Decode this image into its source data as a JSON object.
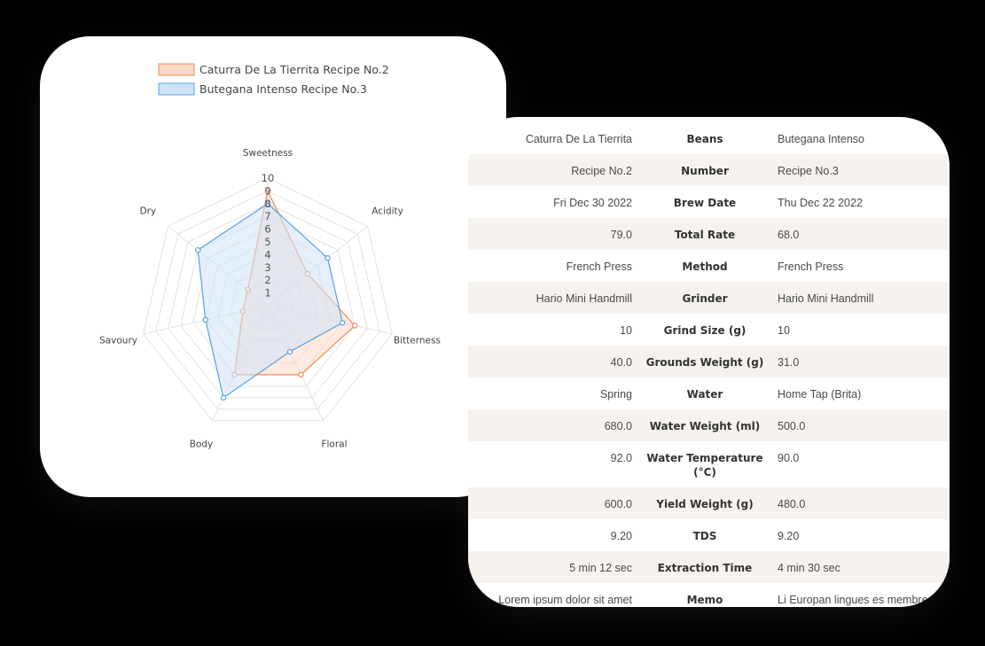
{
  "chart_data": {
    "type": "radar",
    "axes": [
      "Sweetness",
      "Acidity",
      "Bitterness",
      "Floral",
      "Body",
      "Savoury",
      "Dry"
    ],
    "rlim": [
      0,
      10
    ],
    "ticks": [
      "1",
      "2",
      "3",
      "4",
      "5",
      "6",
      "7",
      "8",
      "9",
      "10"
    ],
    "legend_position": "top-center",
    "series": [
      {
        "name": "Caturra De La Tierrita Recipe No.2",
        "values": [
          9,
          4,
          7,
          6,
          6,
          2,
          2
        ],
        "color": "#f08c5a",
        "fill": "#fbd9c6"
      },
      {
        "name": "Butegana Intenso Recipe No.3",
        "values": [
          8,
          6,
          6,
          4,
          8,
          5,
          7
        ],
        "color": "#5aa0e0",
        "fill": "#cfe3f7"
      }
    ]
  },
  "comparison": {
    "rows": [
      {
        "field": "Beans",
        "a": "Caturra De La Tierrita",
        "b": "Butegana Intenso"
      },
      {
        "field": "Number",
        "a": "Recipe No.2",
        "b": "Recipe No.3"
      },
      {
        "field": "Brew Date",
        "a": "Fri Dec 30 2022",
        "b": "Thu Dec 22 2022"
      },
      {
        "field": "Total Rate",
        "a": "79.0",
        "b": "68.0"
      },
      {
        "field": "Method",
        "a": "French Press",
        "b": "French Press"
      },
      {
        "field": "Grinder",
        "a": "Hario Mini Handmill",
        "b": "Hario Mini Handmill"
      },
      {
        "field": "Grind Size (g)",
        "a": "10",
        "b": "10"
      },
      {
        "field": "Grounds Weight (g)",
        "a": "40.0",
        "b": "31.0"
      },
      {
        "field": "Water",
        "a": "Spring",
        "b": "Home Tap (Brita)"
      },
      {
        "field": "Water Weight (ml)",
        "a": "680.0",
        "b": "500.0"
      },
      {
        "field": "Water Temperature (°C)",
        "a": "92.0",
        "b": "90.0"
      },
      {
        "field": "Yield Weight (g)",
        "a": "600.0",
        "b": "480.0"
      },
      {
        "field": "TDS",
        "a": "9.20",
        "b": "9.20"
      },
      {
        "field": "Extraction Time",
        "a": "5 min 12 sec",
        "b": "4 min 30 sec"
      },
      {
        "field": "Memo",
        "a": "Lorem ipsum dolor sit amet,",
        "b": "Li Europan lingues es membres"
      }
    ]
  }
}
